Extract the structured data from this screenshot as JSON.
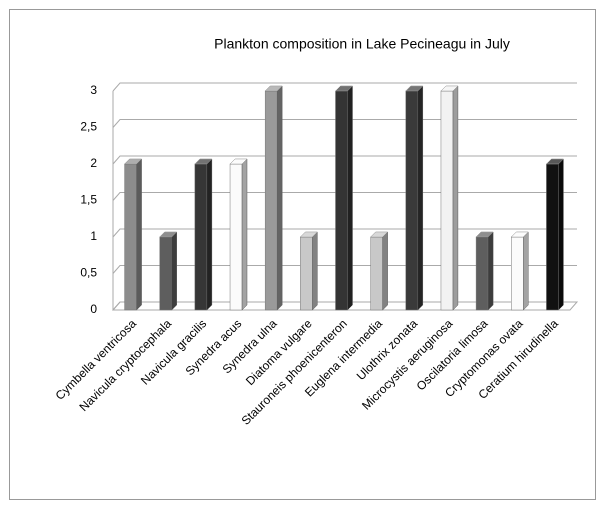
{
  "chart_data": {
    "type": "bar3d",
    "title": "Plankton composition in Lake Pecineagu in July",
    "categories": [
      "Cymbella ventricosa",
      "Navicula cryptocephala",
      "Navicula gracilis",
      "Synedra acus",
      "Synedra ulna",
      "Diatoma vulgare",
      "Stauroneis phoenicenteron",
      "Euglena intermedia",
      "Ulothrix zonata",
      "Microcystis aeruginosa",
      "Oscilatoria limosa",
      "Cryptomonas ovata",
      "Ceratium hirudinella"
    ],
    "values": [
      2,
      1,
      2,
      2,
      3,
      1,
      3,
      1,
      3,
      3,
      1,
      1,
      2
    ],
    "colors": [
      "#8c8c8c",
      "#5e5e5e",
      "#363636",
      "#fbfbfb",
      "#9a9a9a",
      "#c8c8c8",
      "#343434",
      "#c8c8c8",
      "#3a3a3a",
      "#f2f2f2",
      "#5e5e5e",
      "#fbfbfb",
      "#111111"
    ],
    "ylim": [
      0,
      3
    ],
    "yticks": [
      0,
      {
        "value": 0.5,
        "label": "0,5"
      },
      1,
      {
        "value": 1.5,
        "label": "1,5"
      },
      2,
      {
        "value": 2.5,
        "label": "2,5"
      },
      3
    ],
    "grid": true
  }
}
